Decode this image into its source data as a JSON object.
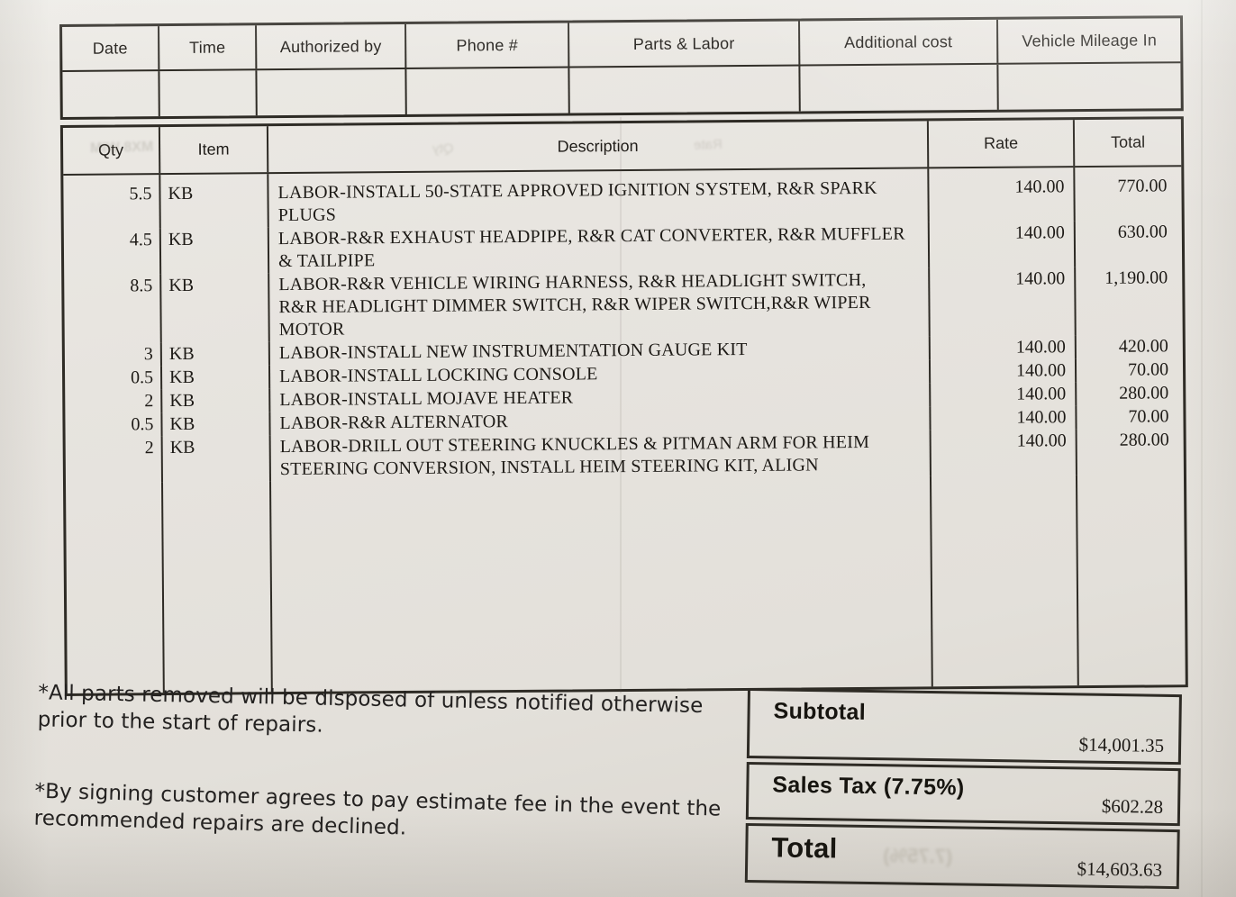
{
  "colors": {
    "paper": "#e6e3de",
    "ink": "#1d1a16",
    "line": "#2e2b25"
  },
  "header_table": {
    "columns": [
      "Date",
      "Time",
      "Authorized by",
      "Phone #",
      "Parts & Labor",
      "Additional cost",
      "Vehicle Mileage In"
    ],
    "values": [
      "",
      "",
      "",
      "",
      "",
      "",
      ""
    ]
  },
  "items_table": {
    "headers": {
      "qty": "Qty",
      "item": "Item",
      "description": "Description",
      "rate": "Rate",
      "total": "Total"
    },
    "rows": [
      {
        "qty": "5.5",
        "item": "KB",
        "description": "LABOR-INSTALL 50-STATE APPROVED IGNITION SYSTEM, R&R SPARK PLUGS",
        "rate": "140.00",
        "total": "770.00"
      },
      {
        "qty": "4.5",
        "item": "KB",
        "description": "LABOR-R&R EXHAUST HEADPIPE, R&R CAT CONVERTER, R&R MUFFLER & TAILPIPE",
        "rate": "140.00",
        "total": "630.00"
      },
      {
        "qty": "8.5",
        "item": "KB",
        "description": "LABOR-R&R VEHICLE WIRING HARNESS, R&R HEADLIGHT SWITCH, R&R HEADLIGHT DIMMER SWITCH, R&R WIPER SWITCH,R&R WIPER MOTOR",
        "rate": "140.00",
        "total": "1,190.00"
      },
      {
        "qty": "3",
        "item": "KB",
        "description": "LABOR-INSTALL NEW INSTRUMENTATION GAUGE KIT",
        "rate": "140.00",
        "total": "420.00"
      },
      {
        "qty": "0.5",
        "item": "KB",
        "description": "LABOR-INSTALL LOCKING CONSOLE",
        "rate": "140.00",
        "total": "70.00"
      },
      {
        "qty": "2",
        "item": "KB",
        "description": "LABOR-INSTALL MOJAVE HEATER",
        "rate": "140.00",
        "total": "280.00"
      },
      {
        "qty": "0.5",
        "item": "KB",
        "description": "LABOR-R&R ALTERNATOR",
        "rate": "140.00",
        "total": "70.00"
      },
      {
        "qty": "2",
        "item": "KB",
        "description": "LABOR-DRILL OUT STEERING KNUCKLES & PITMAN ARM FOR HEIM STEERING CONVERSION, INSTALL HEIM STEERING KIT, ALIGN",
        "rate": "140.00",
        "total": "280.00"
      }
    ]
  },
  "notes": [
    "*All parts removed will be disposed of unless notified otherwise prior to the start of repairs.",
    "*By signing customer agrees to pay estimate fee in the event the recommended repairs are declined."
  ],
  "totals": {
    "subtotal_label": "Subtotal",
    "subtotal_value": "$14,001.35",
    "sales_tax_label": "Sales Tax  (7.75%)",
    "sales_tax_value": "$602.28",
    "total_label": "Total",
    "total_value": "$14,603.63"
  },
  "artifacts": {
    "bleed_through_tax": "(7.75%)"
  }
}
